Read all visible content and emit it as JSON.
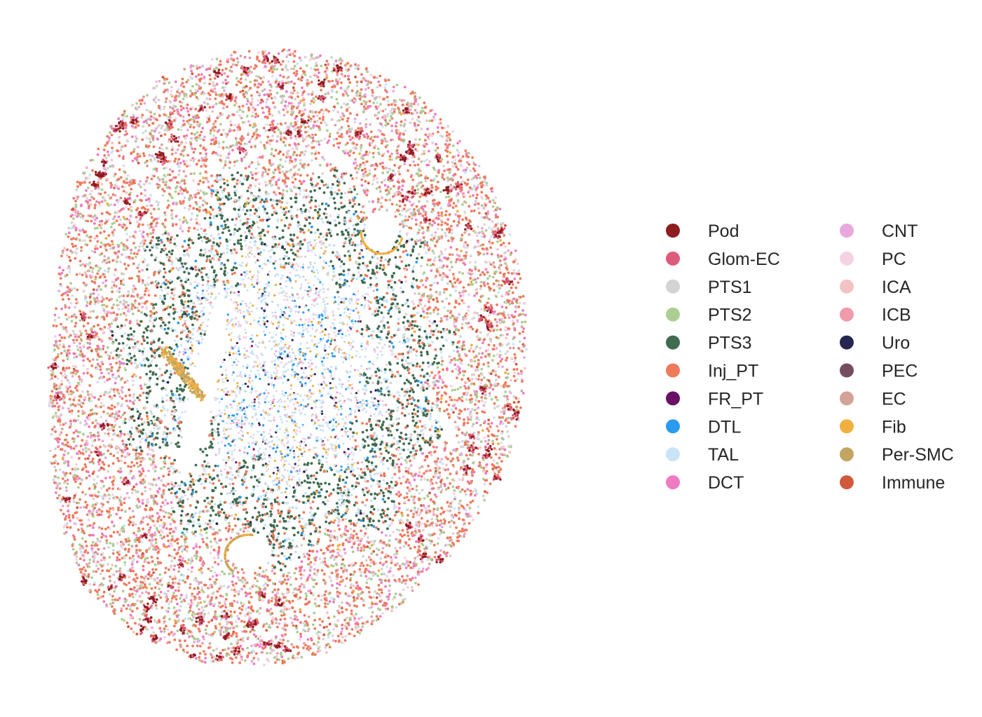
{
  "chart_data": {
    "type": "scatter",
    "title": "",
    "xlabel": "",
    "ylabel": "",
    "axes_visible": false,
    "grid": false,
    "legend_placement": "right",
    "legend_columns": 2,
    "legend": [
      {
        "label": "Pod",
        "color": "#8e1c1f"
      },
      {
        "label": "Glom-EC",
        "color": "#de5c7a"
      },
      {
        "label": "PTS1",
        "color": "#d3d3d3"
      },
      {
        "label": "PTS2",
        "color": "#acce93"
      },
      {
        "label": "PTS3",
        "color": "#3f6b4f"
      },
      {
        "label": "Inj_PT",
        "color": "#f07a5c"
      },
      {
        "label": "FR_PT",
        "color": "#6a1066"
      },
      {
        "label": "DTL",
        "color": "#2a9bef"
      },
      {
        "label": "TAL",
        "color": "#c9e3f7"
      },
      {
        "label": "DCT",
        "color": "#ef7ac3"
      },
      {
        "label": "CNT",
        "color": "#e8a8dc"
      },
      {
        "label": "PC",
        "color": "#f3d3e2"
      },
      {
        "label": "ICA",
        "color": "#f3c3c3"
      },
      {
        "label": "ICB",
        "color": "#f09aaa"
      },
      {
        "label": "Uro",
        "color": "#262650"
      },
      {
        "label": "PEC",
        "color": "#744e60"
      },
      {
        "label": "EC",
        "color": "#d3a397"
      },
      {
        "label": "Fib",
        "color": "#f0b040"
      },
      {
        "label": "Per-SMC",
        "color": "#c1a561"
      },
      {
        "label": "Immune",
        "color": "#cf5a3d"
      }
    ],
    "regions": {
      "cortex": [
        "Inj_PT",
        "PTS2",
        "PTS1",
        "DCT",
        "CNT",
        "PC",
        "ICA",
        "EC",
        "Glom-EC",
        "Pod"
      ],
      "outer_medulla": [
        "PTS3",
        "TAL",
        "Inj_PT"
      ],
      "inner_medulla": [
        "TAL",
        "PC",
        "DTL",
        "Fib",
        "Uro",
        "CNT",
        "ICB"
      ]
    }
  }
}
